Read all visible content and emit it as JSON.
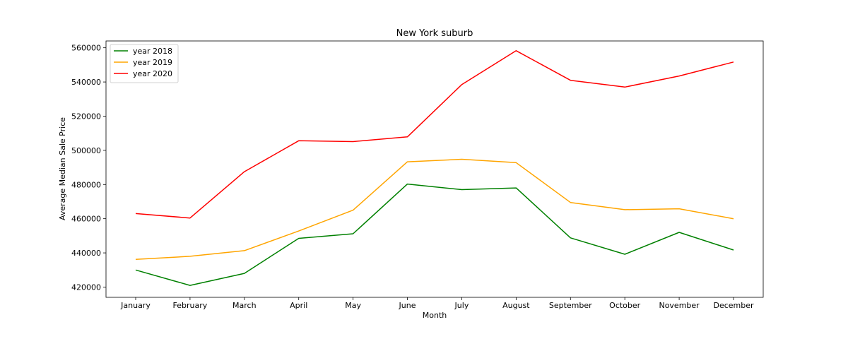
{
  "chart_data": {
    "type": "line",
    "title": "New York suburb",
    "xlabel": "Month",
    "ylabel": "Average Median Sale Price",
    "categories": [
      "January",
      "February",
      "March",
      "April",
      "May",
      "June",
      "July",
      "August",
      "September",
      "October",
      "November",
      "December"
    ],
    "yticks": [
      420000,
      440000,
      460000,
      480000,
      500000,
      520000,
      540000,
      560000
    ],
    "ylim": [
      414000,
      564000
    ],
    "legend_position": "top-left",
    "grid": false,
    "series": [
      {
        "name": "year 2018",
        "color": "#008000",
        "values": [
          430000,
          421000,
          428000,
          448500,
          451200,
          480300,
          477000,
          478000,
          448800,
          439200,
          452000,
          441700
        ]
      },
      {
        "name": "year 2019",
        "color": "#ffa500",
        "values": [
          436200,
          438000,
          441300,
          452800,
          465000,
          493300,
          494800,
          492800,
          469500,
          465300,
          465800,
          460000
        ]
      },
      {
        "name": "year 2020",
        "color": "#ff0000",
        "values": [
          463000,
          460400,
          487500,
          505600,
          505100,
          507900,
          538500,
          558300,
          541000,
          537000,
          543500,
          551700
        ]
      }
    ]
  }
}
